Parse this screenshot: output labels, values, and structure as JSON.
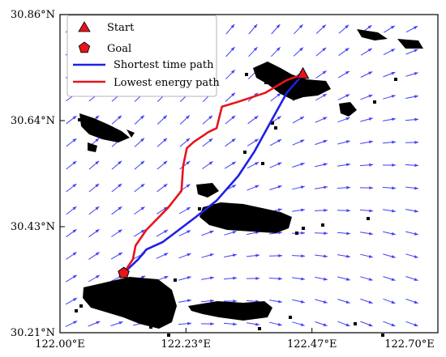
{
  "figure": {
    "x_ticks": [
      "122.00°E",
      "122.23°E",
      "122.47°E",
      "122.70°E"
    ],
    "y_ticks": [
      "30.86°N",
      "30.64°N",
      "30.43°N",
      "30.21°N"
    ],
    "x_range": [
      122.0,
      122.7
    ],
    "y_range": [
      30.21,
      30.86
    ]
  },
  "legend": {
    "position": "top-left",
    "items": [
      {
        "label": "Start",
        "marker": "triangle",
        "color": "#e8141c"
      },
      {
        "label": "Goal",
        "marker": "pentagon",
        "color": "#e8141c"
      },
      {
        "label": "Shortest time path",
        "line": true,
        "color": "#1f1fe6"
      },
      {
        "label": "Lowest energy path",
        "line": true,
        "color": "#e8141c"
      }
    ]
  },
  "markers": {
    "start": {
      "lon": 122.45,
      "lat": 30.738
    },
    "goal": {
      "lon": 122.118,
      "lat": 30.332
    }
  },
  "paths": {
    "shortest_time": {
      "color": "#1f1fe6",
      "points": [
        [
          122.45,
          30.738
        ],
        [
          122.42,
          30.7
        ],
        [
          122.39,
          30.64
        ],
        [
          122.36,
          30.58
        ],
        [
          122.33,
          30.53
        ],
        [
          122.29,
          30.48
        ],
        [
          122.25,
          30.445
        ],
        [
          122.22,
          30.42
        ],
        [
          122.19,
          30.395
        ],
        [
          122.16,
          30.38
        ],
        [
          122.145,
          30.36
        ],
        [
          122.118,
          30.332
        ]
      ]
    },
    "lowest_energy": {
      "color": "#e8141c",
      "points": [
        [
          122.45,
          30.738
        ],
        [
          122.42,
          30.726
        ],
        [
          122.38,
          30.7
        ],
        [
          122.325,
          30.68
        ],
        [
          122.3,
          30.672
        ],
        [
          122.295,
          30.65
        ],
        [
          122.29,
          30.628
        ],
        [
          122.275,
          30.62
        ],
        [
          122.248,
          30.6
        ],
        [
          122.235,
          30.587
        ],
        [
          122.228,
          30.55
        ],
        [
          122.225,
          30.5
        ],
        [
          122.2,
          30.465
        ],
        [
          122.16,
          30.42
        ],
        [
          122.14,
          30.388
        ],
        [
          122.135,
          30.36
        ],
        [
          122.118,
          30.332
        ]
      ]
    }
  },
  "colors": {
    "arrow": "#3f3ff5",
    "land": "#000000"
  }
}
